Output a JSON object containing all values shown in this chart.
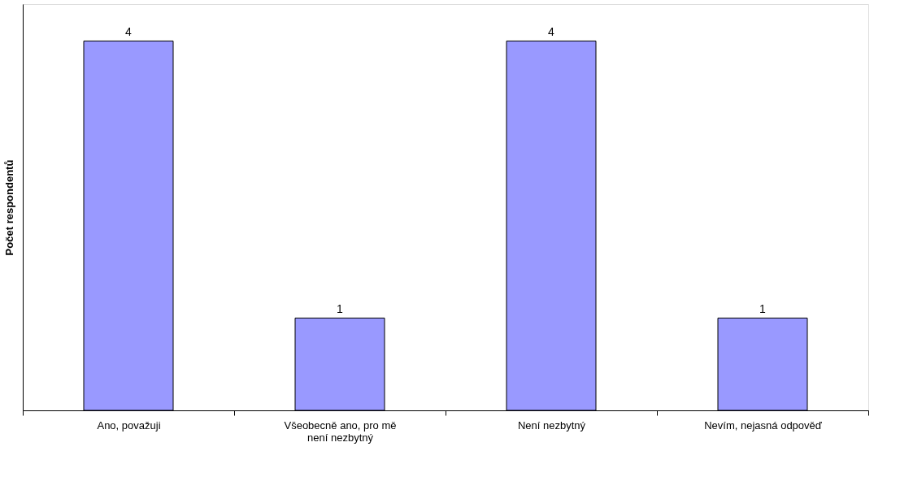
{
  "chart_data": {
    "type": "bar",
    "ylabel": "Počet respondentů",
    "categories": [
      "Ano, považuji",
      "Všeobecně ano, pro mě není nezbytný",
      "Není nezbytný",
      "Nevím, nejasná odpověď"
    ],
    "values": [
      4,
      1,
      4,
      1
    ],
    "color": "#9999ff",
    "ylim": [
      0,
      4.4
    ],
    "data_labels": true,
    "tick_labels": "x",
    "grid": false
  }
}
